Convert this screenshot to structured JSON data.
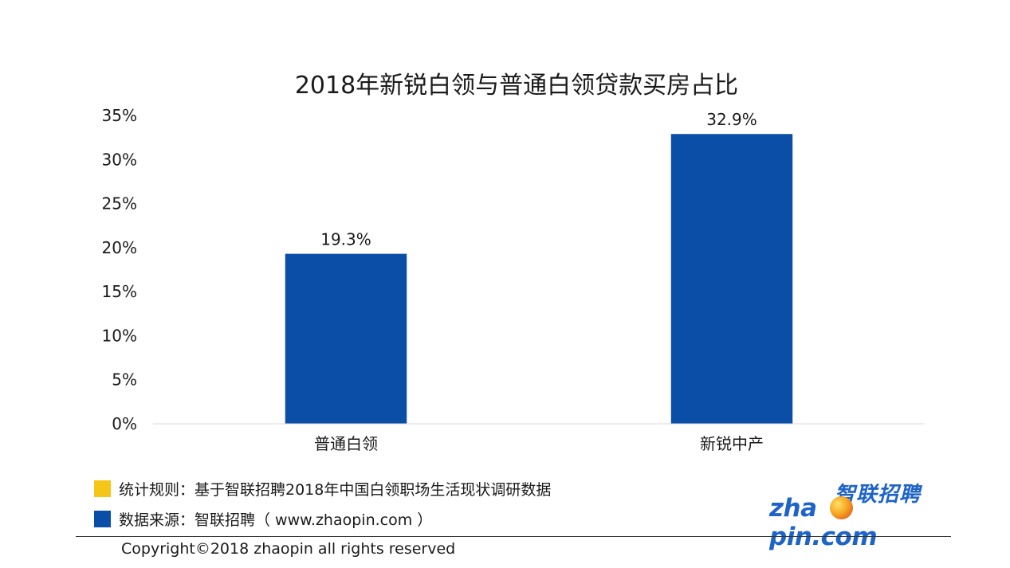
{
  "chart_data": {
    "type": "bar",
    "title": "2018年新锐白领与普通白领贷款买房占比",
    "categories": [
      "普通白领",
      "新锐中产"
    ],
    "values": [
      19.3,
      32.9
    ],
    "data_labels": [
      "19.3%",
      "32.9%"
    ],
    "ylim": [
      0,
      35
    ],
    "yticks": [
      0,
      5,
      10,
      15,
      20,
      25,
      30,
      35
    ],
    "ytick_labels": [
      "0%",
      "5%",
      "10%",
      "15%",
      "20%",
      "25%",
      "30%",
      "35%"
    ],
    "bar_color": "#0a4ea8",
    "grid": false,
    "legend": false
  },
  "notes": [
    {
      "text": "统计规则：基于智联招聘2018年中国白领职场生活现状调研数据",
      "color": "#f5c518"
    },
    {
      "text": "数据来源：智联招聘（ www.zhaopin.com ）",
      "color": "#0a4ea8"
    }
  ],
  "footer": {
    "copyright": "Copyright©2018 zhaopin all rights reserved"
  },
  "logo": {
    "cn": "智联招聘",
    "en_left": "zha",
    "en_right": "pin.com",
    "color": "#1e64c8"
  }
}
